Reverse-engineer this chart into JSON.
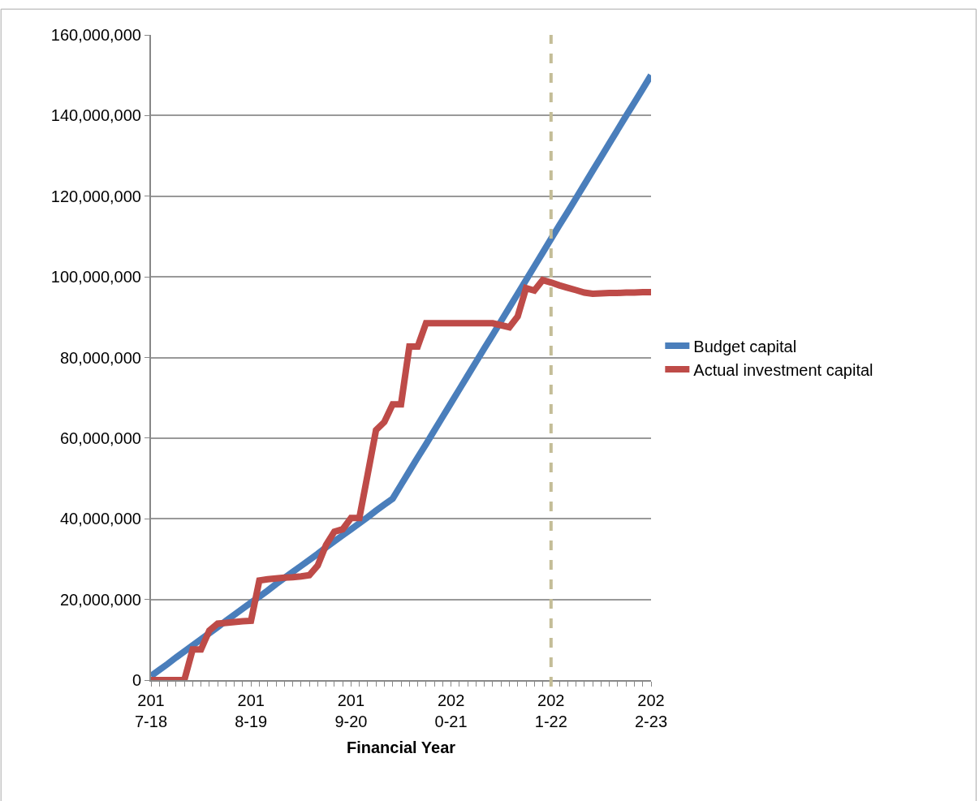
{
  "chart_data": {
    "type": "line",
    "xlabel": "Financial Year",
    "categories": [
      "2017-18",
      null,
      null,
      null,
      null,
      null,
      null,
      null,
      null,
      null,
      null,
      null,
      "2018-19",
      null,
      null,
      null,
      null,
      null,
      null,
      null,
      null,
      null,
      null,
      null,
      "2019-20",
      null,
      null,
      null,
      null,
      null,
      null,
      null,
      null,
      null,
      null,
      null,
      "2020-21",
      null,
      null,
      null,
      null,
      null,
      null,
      null,
      null,
      null,
      null,
      null,
      "2021-22",
      null,
      null,
      null,
      null,
      null,
      null,
      null,
      null,
      null,
      null,
      null,
      "2022-23"
    ],
    "ylim": [
      0,
      160000000
    ],
    "yticks": [
      {
        "value": 0,
        "label": "0"
      },
      {
        "value": 20000000,
        "label": "20,000,000"
      },
      {
        "value": 40000000,
        "label": "40,000,000"
      },
      {
        "value": 60000000,
        "label": "60,000,000"
      },
      {
        "value": 80000000,
        "label": "80,000,000"
      },
      {
        "value": 100000000,
        "label": "100,000,000"
      },
      {
        "value": 120000000,
        "label": "120,000,000"
      },
      {
        "value": 140000000,
        "label": "140,000,000"
      },
      {
        "value": 160000000,
        "label": "160,000,000"
      }
    ],
    "grid": "y",
    "legend": "right",
    "marker": "none",
    "line_style": "solid",
    "ref_lines": [
      {
        "axis": "x",
        "value": "2021-22",
        "color": "#c4bd97",
        "line_style": "dashed"
      }
    ],
    "series": [
      {
        "name": "Budget capital",
        "color": "#4a7ebb",
        "values": [
          1000000,
          2500000,
          4000000,
          5600000,
          7100000,
          8600000,
          10100000,
          11600000,
          13100000,
          14700000,
          16200000,
          17700000,
          19200000,
          20700000,
          22200000,
          23800000,
          25300000,
          26800000,
          28300000,
          29800000,
          31300000,
          32900000,
          34400000,
          35900000,
          37400000,
          38900000,
          40400000,
          42000000,
          43500000,
          45000000,
          48400000,
          51800000,
          55200000,
          58500000,
          61900000,
          65300000,
          68700000,
          72100000,
          75500000,
          78900000,
          82300000,
          85600000,
          89000000,
          92400000,
          95800000,
          99200000,
          102600000,
          106000000,
          109400000,
          112800000,
          116100000,
          119500000,
          122900000,
          126300000,
          129700000,
          133100000,
          136500000,
          139900000,
          143200000,
          146600000,
          150000000
        ]
      },
      {
        "name": "Actual investment capital",
        "color": "#be4b48",
        "values": [
          0,
          0,
          0,
          0,
          0,
          7600000,
          7600000,
          12300000,
          14000000,
          14200000,
          14400000,
          14600000,
          14700000,
          24700000,
          25000000,
          25200000,
          25400000,
          25500000,
          25700000,
          26000000,
          28400000,
          33500000,
          36800000,
          37400000,
          40200000,
          40200000,
          51000000,
          62000000,
          64000000,
          68400000,
          68400000,
          82700000,
          82700000,
          88500000,
          88500000,
          88500000,
          88500000,
          88500000,
          88500000,
          88500000,
          88500000,
          88500000,
          88000000,
          87500000,
          90200000,
          97200000,
          96600000,
          99200000,
          98600000,
          97900000,
          97300000,
          96700000,
          96100000,
          95800000,
          95900000,
          96000000,
          96000000,
          96100000,
          96100000,
          96200000,
          96200000
        ]
      }
    ]
  }
}
